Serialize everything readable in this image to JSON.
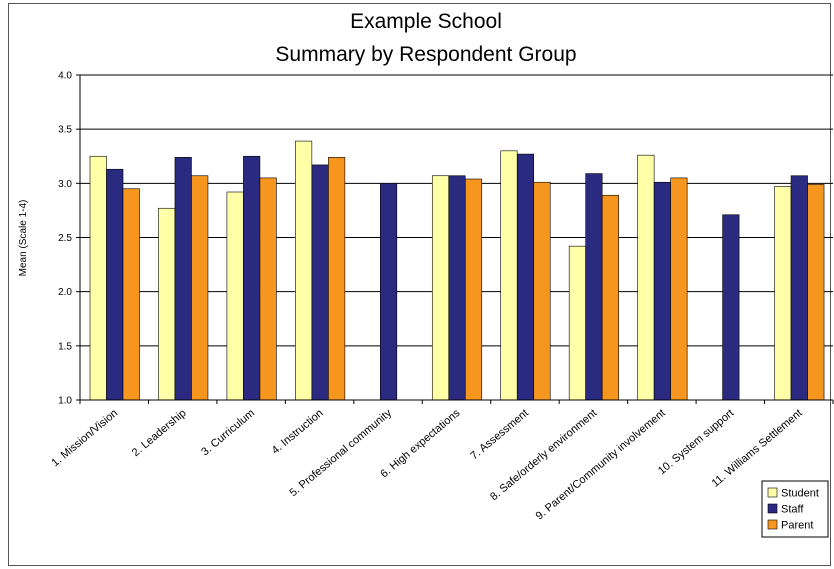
{
  "chart_data": {
    "type": "bar",
    "title": [
      "Example School",
      "Summary by Respondent Group"
    ],
    "ylabel": "Mean (Scale 1-4)",
    "ylim": [
      1.0,
      4.0
    ],
    "yticks": [
      "1.0",
      "1.5",
      "2.0",
      "2.5",
      "3.0",
      "3.5",
      "4.0"
    ],
    "grid": true,
    "legend_position": "bottom-right",
    "categories": [
      "1. Mission/Vision",
      "2. Leadership",
      "3. Curriculum",
      "4. Instruction",
      "5. Professional community",
      "6. High expectations",
      "7. Assessment",
      "8. Safe/orderly environment",
      "9. Parent/Community involvement",
      "10. System support",
      "11. Williams Settlement"
    ],
    "series": [
      {
        "name": "Student",
        "color": "#ffffa8",
        "values": [
          3.25,
          2.77,
          2.92,
          3.39,
          null,
          3.07,
          3.3,
          2.42,
          3.26,
          null,
          2.97
        ]
      },
      {
        "name": "Staff",
        "color": "#2a2a80",
        "values": [
          3.13,
          3.24,
          3.25,
          3.17,
          3.0,
          3.07,
          3.27,
          3.09,
          3.01,
          2.71,
          3.07
        ]
      },
      {
        "name": "Parent",
        "color": "#f7961e",
        "values": [
          2.95,
          3.07,
          3.05,
          3.24,
          null,
          3.04,
          3.01,
          2.89,
          3.05,
          null,
          2.99
        ]
      }
    ]
  }
}
